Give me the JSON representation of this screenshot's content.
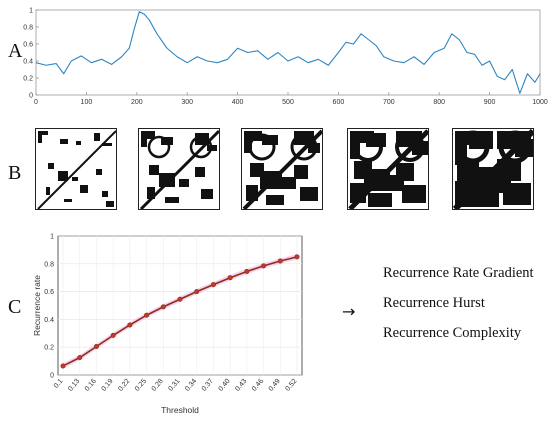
{
  "panels": {
    "a": "A",
    "b": "B",
    "c": "C"
  },
  "arrow": "→",
  "measures": [
    "Recurrence Rate Gradient",
    "Recurrence Hurst",
    "Recurrence Complexity"
  ],
  "chart_data": [
    {
      "type": "line",
      "panel": "A",
      "title": "",
      "xlabel": "",
      "ylabel": "",
      "xlim": [
        0,
        1000
      ],
      "ylim": [
        0,
        1
      ],
      "xticks": [
        "0",
        "100",
        "200",
        "300",
        "400",
        "500",
        "600",
        "700",
        "800",
        "900",
        "1000"
      ],
      "yticks": [
        "0",
        "0.2",
        "0.4",
        "0.6",
        "0.8",
        "1"
      ],
      "color": "#2e86c1",
      "x": [
        0,
        20,
        40,
        55,
        70,
        90,
        110,
        130,
        150,
        170,
        185,
        195,
        205,
        215,
        225,
        240,
        260,
        280,
        300,
        320,
        340,
        360,
        380,
        400,
        420,
        440,
        460,
        480,
        500,
        520,
        540,
        560,
        580,
        600,
        615,
        630,
        645,
        660,
        675,
        690,
        710,
        730,
        750,
        770,
        790,
        810,
        825,
        840,
        855,
        870,
        885,
        900,
        915,
        930,
        945,
        960,
        975,
        990,
        1000
      ],
      "y": [
        0.38,
        0.35,
        0.37,
        0.25,
        0.4,
        0.46,
        0.38,
        0.42,
        0.36,
        0.45,
        0.55,
        0.78,
        0.98,
        0.95,
        0.88,
        0.72,
        0.55,
        0.45,
        0.38,
        0.45,
        0.4,
        0.38,
        0.42,
        0.55,
        0.5,
        0.52,
        0.42,
        0.5,
        0.4,
        0.45,
        0.38,
        0.42,
        0.35,
        0.5,
        0.62,
        0.6,
        0.72,
        0.65,
        0.58,
        0.45,
        0.4,
        0.38,
        0.45,
        0.36,
        0.5,
        0.55,
        0.72,
        0.65,
        0.5,
        0.48,
        0.35,
        0.4,
        0.22,
        0.18,
        0.3,
        0.02,
        0.25,
        0.15,
        0.25
      ]
    },
    {
      "type": "line",
      "panel": "C",
      "title": "",
      "xlabel": "Threshold",
      "ylabel": "Recurrence rate",
      "ylim": [
        0,
        1
      ],
      "yticks": [
        "0",
        "0.2",
        "0.4",
        "0.6",
        "0.8",
        "1"
      ],
      "grid": true,
      "color": "#8b2e16",
      "categories": [
        "0.1",
        "0.13",
        "0.16",
        "0.19",
        "0.22",
        "0.25",
        "0.28",
        "0.31",
        "0.34",
        "0.37",
        "0.40",
        "0.43",
        "0.46",
        "0.49",
        "0.52"
      ],
      "values": [
        0.065,
        0.125,
        0.205,
        0.285,
        0.36,
        0.43,
        0.49,
        0.545,
        0.6,
        0.65,
        0.7,
        0.745,
        0.785,
        0.82,
        0.85
      ]
    }
  ]
}
